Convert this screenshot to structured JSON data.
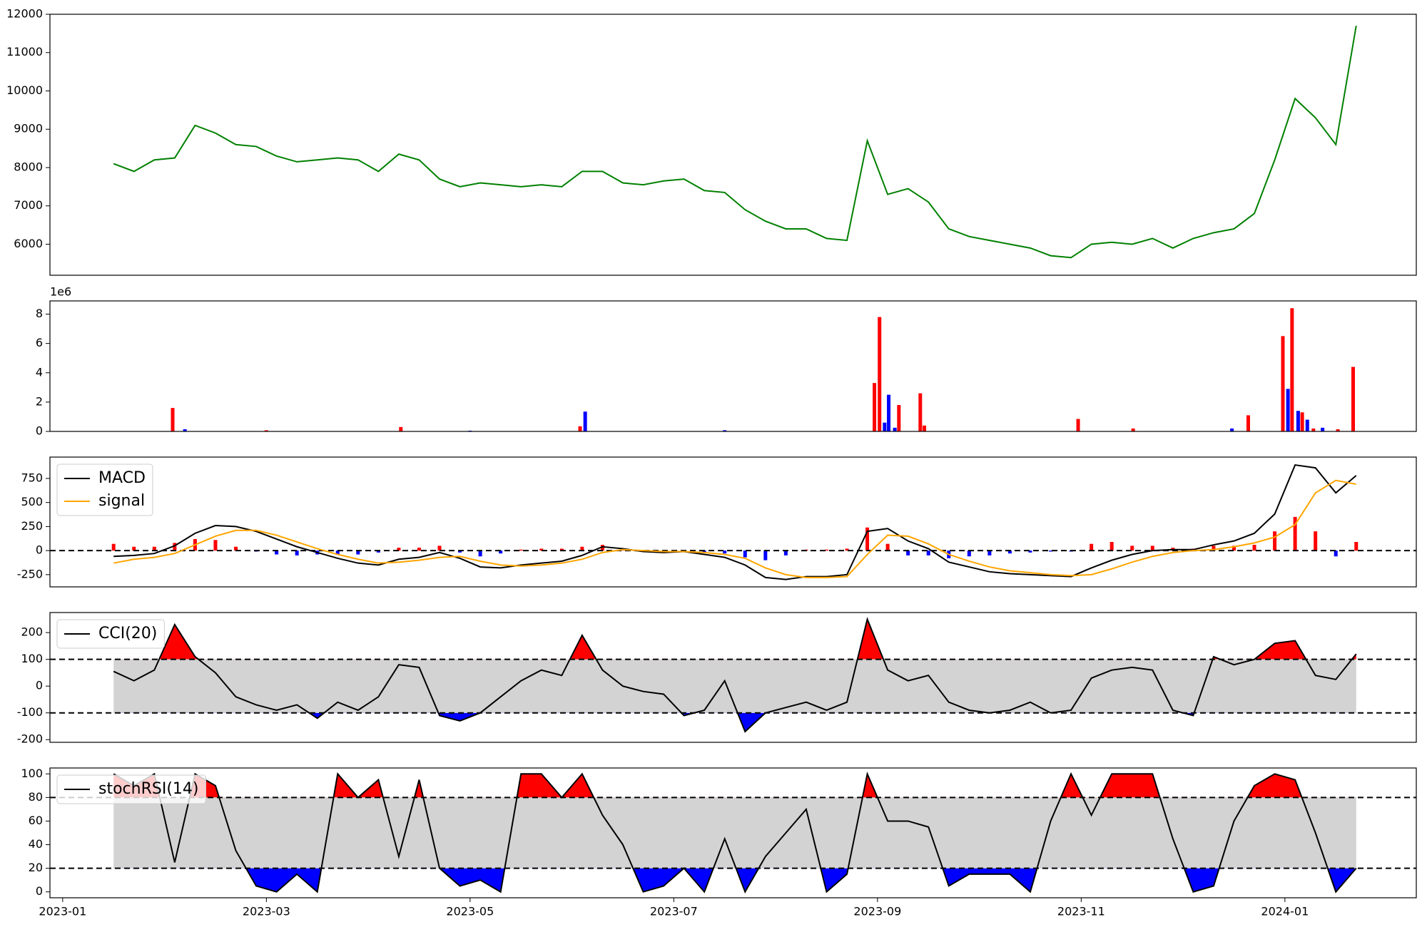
{
  "chart_data": [
    {
      "type": "line",
      "xlim": [
        -0.125,
        13.29
      ],
      "ylim": [
        5190,
        12000
      ],
      "yticks": [
        6000,
        7000,
        8000,
        9000,
        10000,
        11000,
        12000
      ],
      "x": [
        0.5,
        0.7,
        0.9,
        1.1,
        1.3,
        1.5,
        1.7,
        1.9,
        2.1,
        2.3,
        2.5,
        2.7,
        2.9,
        3.1,
        3.3,
        3.5,
        3.7,
        3.9,
        4.1,
        4.3,
        4.5,
        4.7,
        4.9,
        5.1,
        5.3,
        5.5,
        5.7,
        5.9,
        6.1,
        6.3,
        6.5,
        6.7,
        6.9,
        7.1,
        7.3,
        7.5,
        7.7,
        7.9,
        8.1,
        8.3,
        8.5,
        8.7,
        8.9,
        9.1,
        9.3,
        9.5,
        9.7,
        9.9,
        10.1,
        10.3,
        10.5,
        10.7,
        10.9,
        11.1,
        11.3,
        11.5,
        11.7,
        11.9,
        12.1,
        12.3,
        12.5,
        12.7
      ],
      "series": [
        {
          "color": "#008000",
          "values": [
            8100,
            7900,
            8200,
            8250,
            9100,
            8900,
            8600,
            8550,
            8300,
            8150,
            8200,
            8250,
            8200,
            7900,
            8350,
            8200,
            7700,
            7500,
            7600,
            7550,
            7500,
            7550,
            7500,
            7900,
            7900,
            7600,
            7550,
            7650,
            7700,
            7400,
            7350,
            6900,
            6600,
            6400,
            6400,
            6150,
            6100,
            8700,
            7300,
            7450,
            7100,
            6400,
            6200,
            6100,
            6000,
            5900,
            5700,
            5650,
            6000,
            6050,
            6000,
            6150,
            5900,
            6150,
            6300,
            6400,
            6800,
            8200,
            9800,
            9300,
            8600,
            11700
          ]
        }
      ]
    },
    {
      "type": "bar",
      "xlim": [
        -0.125,
        13.29
      ],
      "ylim": [
        0,
        8.9
      ],
      "yticks": [
        0,
        2,
        4,
        6,
        8
      ],
      "offset_label": "1e6",
      "x": [
        1.08,
        1.2,
        2.0,
        3.32,
        4.0,
        5.08,
        5.13,
        6.5,
        7.97,
        8.02,
        8.07,
        8.11,
        8.17,
        8.21,
        8.42,
        8.46,
        9.97,
        10.51,
        11.48,
        11.64,
        11.98,
        12.03,
        12.07,
        12.13,
        12.17,
        12.22,
        12.28,
        12.37,
        12.52,
        12.67
      ],
      "values": [
        1.6,
        0.15,
        0.08,
        0.3,
        0.05,
        0.35,
        1.35,
        0.08,
        3.3,
        7.8,
        0.6,
        2.5,
        0.25,
        1.8,
        2.6,
        0.4,
        0.85,
        0.2,
        0.2,
        1.1,
        6.5,
        2.9,
        8.4,
        1.4,
        1.3,
        0.8,
        0.2,
        0.25,
        0.15,
        4.4
      ],
      "colors": [
        "red",
        "blue",
        "red",
        "red",
        "blue",
        "red",
        "blue",
        "blue",
        "red",
        "red",
        "blue",
        "blue",
        "blue",
        "red",
        "red",
        "red",
        "red",
        "red",
        "blue",
        "red",
        "red",
        "blue",
        "red",
        "blue",
        "red",
        "blue",
        "red",
        "blue",
        "red",
        "red"
      ]
    },
    {
      "type": "line",
      "xlim": [
        -0.125,
        13.29
      ],
      "ylim": [
        -377,
        972
      ],
      "yticks": [
        -250,
        0,
        250,
        500,
        750
      ],
      "hlines": [
        0
      ],
      "legend": "upper left",
      "x": [
        0.5,
        0.7,
        0.9,
        1.1,
        1.3,
        1.5,
        1.7,
        1.9,
        2.1,
        2.3,
        2.5,
        2.7,
        2.9,
        3.1,
        3.3,
        3.5,
        3.7,
        3.9,
        4.1,
        4.3,
        4.5,
        4.7,
        4.9,
        5.1,
        5.3,
        5.5,
        5.7,
        5.9,
        6.1,
        6.3,
        6.5,
        6.7,
        6.9,
        7.1,
        7.3,
        7.5,
        7.7,
        7.9,
        8.1,
        8.3,
        8.5,
        8.7,
        8.9,
        9.1,
        9.3,
        9.5,
        9.7,
        9.9,
        10.1,
        10.3,
        10.5,
        10.7,
        10.9,
        11.1,
        11.3,
        11.5,
        11.7,
        11.9,
        12.1,
        12.3,
        12.5,
        12.7
      ],
      "histogram": {
        "positive_color": "red",
        "negative_color": "blue",
        "values": [
          70,
          40,
          40,
          80,
          120,
          110,
          40,
          -10,
          -40,
          -50,
          -40,
          -40,
          -40,
          -20,
          30,
          30,
          50,
          -20,
          -60,
          -30,
          10,
          20,
          20,
          40,
          60,
          10,
          -10,
          -10,
          0,
          -20,
          -30,
          -70,
          -100,
          -50,
          10,
          10,
          20,
          240,
          70,
          -50,
          -50,
          -80,
          -60,
          -50,
          -30,
          -20,
          -10,
          -10,
          70,
          90,
          50,
          50,
          30,
          20,
          50,
          50,
          60,
          200,
          350,
          200,
          -60,
          90
        ]
      },
      "series": [
        {
          "name": "MACD",
          "color": "black",
          "values": [
            -60,
            -50,
            -30,
            50,
            180,
            260,
            250,
            200,
            120,
            40,
            -20,
            -80,
            -130,
            -150,
            -90,
            -70,
            -20,
            -80,
            -170,
            -180,
            -150,
            -130,
            -110,
            -50,
            40,
            20,
            -10,
            -20,
            -10,
            -40,
            -70,
            -150,
            -280,
            -300,
            -270,
            -270,
            -250,
            200,
            230,
            100,
            20,
            -120,
            -170,
            -220,
            -240,
            -250,
            -260,
            -270,
            -180,
            -100,
            -40,
            0,
            10,
            10,
            60,
            100,
            180,
            380,
            890,
            860,
            600,
            780
          ]
        },
        {
          "name": "signal",
          "color": "orange",
          "values": [
            -130,
            -90,
            -70,
            -30,
            60,
            150,
            210,
            210,
            160,
            90,
            20,
            -40,
            -90,
            -130,
            -120,
            -100,
            -70,
            -60,
            -110,
            -150,
            -160,
            -150,
            -130,
            -90,
            -20,
            10,
            0,
            -10,
            -10,
            -20,
            -40,
            -80,
            -180,
            -250,
            -280,
            -280,
            -270,
            -40,
            160,
            150,
            70,
            -40,
            -110,
            -170,
            -210,
            -230,
            -250,
            -260,
            -250,
            -190,
            -120,
            -60,
            -20,
            0,
            10,
            40,
            80,
            140,
            270,
            600,
            730,
            690
          ]
        }
      ]
    },
    {
      "type": "line",
      "xlim": [
        -0.125,
        13.29
      ],
      "ylim": [
        -210,
        275
      ],
      "yticks": [
        -200,
        -100,
        0,
        100,
        200
      ],
      "thresholds": [
        100,
        -100
      ],
      "band_color": "lightgray",
      "above_color": "red",
      "below_color": "blue",
      "legend": "upper left",
      "x": [
        0.5,
        0.7,
        0.9,
        1.1,
        1.3,
        1.5,
        1.7,
        1.9,
        2.1,
        2.3,
        2.5,
        2.7,
        2.9,
        3.1,
        3.3,
        3.5,
        3.7,
        3.9,
        4.1,
        4.3,
        4.5,
        4.7,
        4.9,
        5.1,
        5.3,
        5.5,
        5.7,
        5.9,
        6.1,
        6.3,
        6.5,
        6.7,
        6.9,
        7.1,
        7.3,
        7.5,
        7.7,
        7.9,
        8.1,
        8.3,
        8.5,
        8.7,
        8.9,
        9.1,
        9.3,
        9.5,
        9.7,
        9.9,
        10.1,
        10.3,
        10.5,
        10.7,
        10.9,
        11.1,
        11.3,
        11.5,
        11.7,
        11.9,
        12.1,
        12.3,
        12.5,
        12.7
      ],
      "series": [
        {
          "name": "CCI(20)",
          "color": "black",
          "values": [
            55,
            20,
            60,
            230,
            110,
            50,
            -40,
            -70,
            -90,
            -70,
            -120,
            -60,
            -90,
            -40,
            80,
            70,
            -110,
            -130,
            -100,
            -40,
            20,
            60,
            40,
            190,
            60,
            0,
            -20,
            -30,
            -110,
            -90,
            20,
            -170,
            -100,
            -80,
            -60,
            -90,
            -60,
            250,
            60,
            20,
            40,
            -60,
            -90,
            -100,
            -90,
            -60,
            -100,
            -90,
            30,
            60,
            70,
            60,
            -90,
            -110,
            110,
            80,
            100,
            160,
            170,
            40,
            25,
            120
          ]
        }
      ]
    },
    {
      "type": "line",
      "xlim": [
        -0.125,
        13.29
      ],
      "ylim": [
        -5,
        105
      ],
      "yticks": [
        0,
        20,
        40,
        60,
        80,
        100
      ],
      "thresholds": [
        80,
        20
      ],
      "band_color": "lightgray",
      "above_color": "red",
      "below_color": "blue",
      "legend": "upper left",
      "xticks": [
        {
          "value": 0,
          "label": "2023-01"
        },
        {
          "value": 2,
          "label": "2023-03"
        },
        {
          "value": 4,
          "label": "2023-05"
        },
        {
          "value": 6,
          "label": "2023-07"
        },
        {
          "value": 8,
          "label": "2023-09"
        },
        {
          "value": 10,
          "label": "2023-11"
        },
        {
          "value": 12,
          "label": "2024-01"
        }
      ],
      "x": [
        0.5,
        0.7,
        0.9,
        1.1,
        1.3,
        1.5,
        1.7,
        1.9,
        2.1,
        2.3,
        2.5,
        2.7,
        2.9,
        3.1,
        3.3,
        3.5,
        3.7,
        3.9,
        4.1,
        4.3,
        4.5,
        4.7,
        4.9,
        5.1,
        5.3,
        5.5,
        5.7,
        5.9,
        6.1,
        6.3,
        6.5,
        6.7,
        6.9,
        7.1,
        7.3,
        7.5,
        7.7,
        7.9,
        8.1,
        8.3,
        8.5,
        8.7,
        8.9,
        9.1,
        9.3,
        9.5,
        9.7,
        9.9,
        10.1,
        10.3,
        10.5,
        10.7,
        10.9,
        11.1,
        11.3,
        11.5,
        11.7,
        11.9,
        12.1,
        12.3,
        12.5,
        12.7
      ],
      "series": [
        {
          "name": "stochRSI(14)",
          "color": "black",
          "values": [
            100,
            90,
            100,
            25,
            100,
            90,
            35,
            5,
            0,
            15,
            0,
            100,
            80,
            95,
            30,
            95,
            20,
            5,
            10,
            0,
            100,
            100,
            80,
            100,
            65,
            40,
            0,
            5,
            20,
            0,
            45,
            0,
            30,
            50,
            70,
            0,
            15,
            100,
            60,
            60,
            55,
            5,
            15,
            15,
            15,
            0,
            60,
            100,
            65,
            100,
            100,
            100,
            45,
            0,
            5,
            60,
            90,
            100,
            95,
            50,
            0,
            20
          ]
        }
      ]
    }
  ]
}
